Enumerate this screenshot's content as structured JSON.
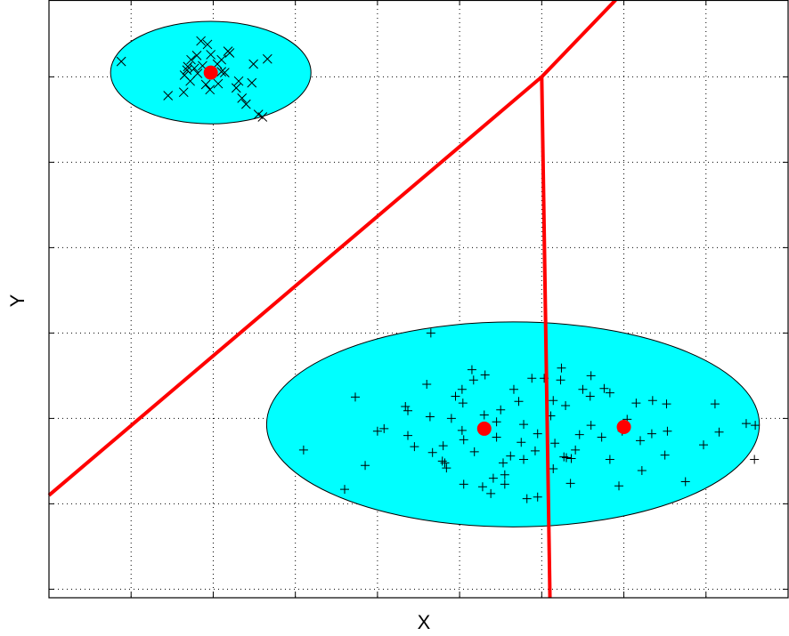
{
  "chart_data": {
    "type": "scatter",
    "title": "",
    "xlabel": "X",
    "ylabel": "Y",
    "xlim": [
      0,
      9
    ],
    "ylim": [
      0,
      7
    ],
    "grid": true,
    "tick_labels_shown": false,
    "xticks": [
      1,
      2,
      3,
      4,
      5,
      6,
      7,
      8
    ],
    "yticks": [
      0.1,
      1.1,
      2.1,
      3.1,
      4.1,
      5.1,
      6.1
    ],
    "colors": {
      "ellipse_fill": "#00ffff",
      "boundary": "#ff0000",
      "centroid": "#ff0000",
      "points": "#000000",
      "grid": "#000000"
    },
    "ellipses": [
      {
        "cx": 1.97,
        "cy": 6.15,
        "rx": 1.22,
        "ry": 0.6
      },
      {
        "cx": 5.65,
        "cy": 2.03,
        "rx": 3.0,
        "ry": 1.2
      }
    ],
    "centroids": [
      {
        "x": 1.97,
        "y": 6.15
      },
      {
        "x": 5.3,
        "y": 1.98
      },
      {
        "x": 7.0,
        "y": 2.0
      }
    ],
    "boundaries": [
      {
        "x": [
          0.0,
          6.0,
          6.9
        ],
        "y": [
          1.2,
          6.1,
          7.0
        ]
      },
      {
        "x": [
          6.0,
          6.1
        ],
        "y": [
          6.1,
          0.0
        ]
      }
    ],
    "series": [
      {
        "marker": "x",
        "x": [
          0.88,
          1.45,
          1.64,
          1.72,
          1.87,
          1.8,
          1.73,
          1.65,
          1.81,
          1.91,
          2.05,
          2.14,
          2.2,
          2.1,
          1.93,
          1.85,
          2.18,
          2.31,
          2.35,
          2.4,
          2.55,
          2.6,
          2.66,
          1.77,
          1.96,
          1.68,
          2.28,
          2.47,
          2.49,
          2.1,
          1.69,
          1.97,
          2.06
        ],
        "y": [
          6.28,
          5.88,
          5.92,
          6.05,
          6.23,
          6.35,
          6.3,
          6.12,
          6.14,
          6.01,
          6.25,
          6.15,
          6.38,
          6.3,
          6.48,
          6.52,
          6.4,
          6.05,
          5.85,
          5.78,
          5.66,
          5.63,
          6.31,
          6.2,
          5.95,
          6.18,
          5.97,
          6.03,
          6.25,
          6.16,
          6.22,
          6.36,
          6.02
        ]
      },
      {
        "marker": "+",
        "x": [
          4.65,
          3.73,
          4.08,
          3.1,
          3.6,
          5.04,
          4.64,
          4.82,
          5.17,
          5.5,
          6.6,
          6.83,
          6.03,
          5.72,
          6.23,
          7.15,
          7.52,
          6.5,
          4.79,
          5.05,
          4.0,
          4.37,
          4.45,
          3.85,
          4.9,
          5.3,
          5.45,
          5.78,
          5.95,
          6.11,
          6.29,
          6.59,
          6.76,
          7.04,
          7.34,
          8.11,
          8.49,
          8.6,
          8.16,
          8.59,
          5.18,
          5.62,
          5.75,
          6.41,
          6.73,
          7.2,
          6.98,
          5.53,
          4.67,
          6.27,
          4.8,
          5.92,
          6.16,
          6.46,
          7.5,
          7.97,
          4.34,
          5.31,
          5.03,
          5.66,
          4.37,
          5.03,
          5.55,
          6.94,
          6.36,
          6.14,
          6.3,
          5.55,
          5.05,
          4.84,
          6.35,
          7.22,
          7.75,
          5.28,
          5.38,
          7.53,
          5.95,
          5.41,
          5.82,
          6.14,
          6.6,
          5.78,
          6.24,
          4.95,
          4.6,
          7.35,
          5.88,
          5.15,
          6.83,
          5.45
        ],
        "y": [
          3.1,
          2.35,
          1.98,
          1.73,
          1.27,
          2.28,
          2.12,
          1.58,
          2.55,
          2.2,
          2.02,
          2.4,
          2.57,
          2.3,
          2.55,
          2.28,
          2.27,
          2.44,
          1.6,
          1.85,
          1.95,
          1.9,
          1.77,
          1.55,
          2.1,
          2.14,
          2.06,
          2.03,
          1.92,
          2.13,
          2.25,
          2.36,
          2.45,
          2.09,
          1.92,
          2.27,
          2.04,
          2.02,
          1.94,
          1.62,
          1.71,
          1.66,
          1.82,
          1.73,
          1.88,
          1.84,
          1.95,
          1.58,
          1.7,
          1.65,
          1.78,
          1.72,
          1.81,
          1.91,
          1.67,
          1.79,
          2.24,
          2.61,
          2.44,
          2.44,
          2.19,
          1.96,
          1.44,
          1.31,
          1.63,
          1.51,
          1.64,
          1.33,
          1.33,
          1.52,
          1.34,
          1.49,
          1.36,
          1.3,
          1.22,
          1.95,
          1.18,
          1.4,
          1.16,
          2.31,
          2.6,
          1.62,
          2.69,
          2.36,
          2.5,
          2.31,
          2.57,
          2.67,
          1.62,
          1.88
        ]
      }
    ]
  }
}
